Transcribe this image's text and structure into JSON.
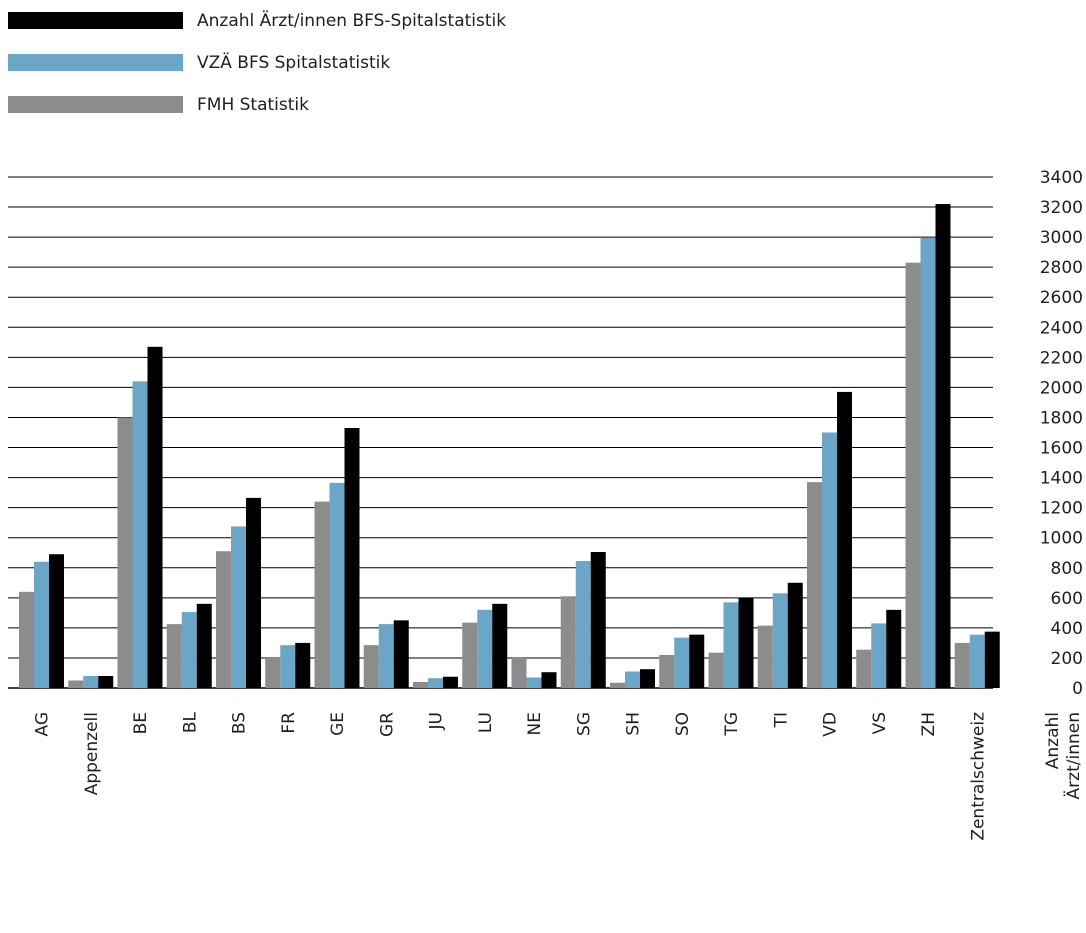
{
  "chart_data": {
    "type": "bar",
    "title": "",
    "xlabel": "",
    "ylabel": "Anzahl Ärzt/innen",
    "ylim": [
      0,
      3400
    ],
    "yticks": [
      0,
      200,
      400,
      600,
      800,
      1000,
      1200,
      1400,
      1600,
      1800,
      2000,
      2200,
      2400,
      2600,
      2800,
      3000,
      3200,
      3400
    ],
    "y_axis_side": "right",
    "grid": true,
    "legend": "top-left",
    "categories": [
      "AG",
      "Appenzell",
      "BE",
      "BL",
      "BS",
      "FR",
      "GE",
      "GR",
      "JU",
      "LU",
      "NE",
      "SG",
      "SH",
      "SO",
      "TG",
      "TI",
      "VD",
      "VS",
      "ZH",
      "Zentralschweiz"
    ],
    "series": [
      {
        "name": "FMH Statistik",
        "color": "#8c8c8c",
        "values": [
          640,
          50,
          1800,
          425,
          910,
          200,
          1240,
          285,
          40,
          435,
          200,
          610,
          35,
          220,
          235,
          415,
          1370,
          255,
          2830,
          300
        ]
      },
      {
        "name": "VZÄ BFS Spitalstatistik",
        "color": "#6aa6c7",
        "values": [
          840,
          80,
          2040,
          505,
          1075,
          285,
          1365,
          425,
          65,
          520,
          70,
          845,
          110,
          335,
          570,
          630,
          1700,
          430,
          2995,
          355
        ]
      },
      {
        "name": "Anzahl Ärzt/innen BFS-Spitalstatistik",
        "color": "#000000",
        "values": [
          890,
          80,
          2270,
          560,
          1265,
          300,
          1730,
          450,
          75,
          560,
          105,
          905,
          125,
          355,
          600,
          700,
          1970,
          520,
          3220,
          375
        ]
      }
    ]
  }
}
